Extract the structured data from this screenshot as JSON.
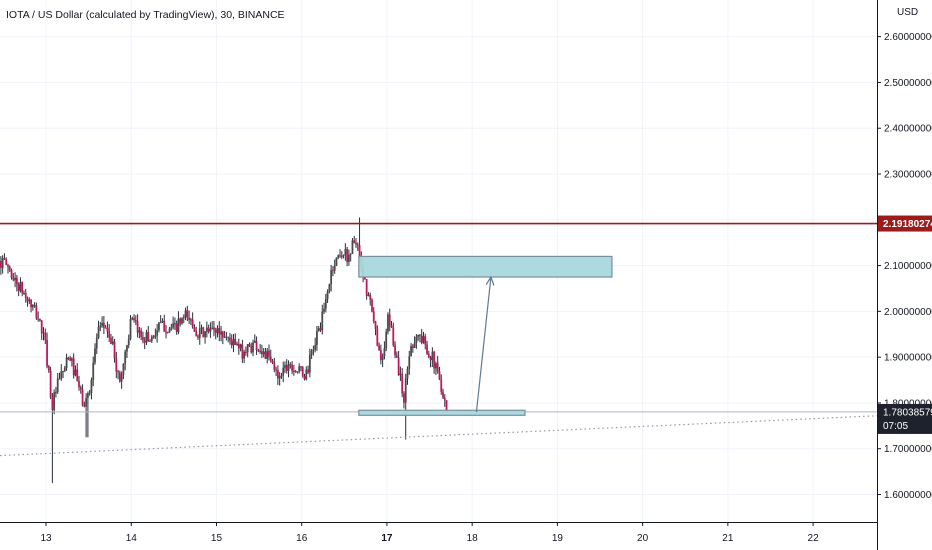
{
  "header": {
    "title": "IOTA / US Dollar (calculated by TradingView), 30, BINANCE"
  },
  "price_axis": {
    "currency": "USD",
    "resistance_label": "2.19180274",
    "current_price_label": "1.78038579",
    "countdown_label": "07:05"
  },
  "colors": {
    "up": "#4a4a4a",
    "down": "#c2185b",
    "wick": "#2a2e39",
    "resistance": "#9c1c1c",
    "zone_fill": "#a8d8dc",
    "zone_stroke": "#7a8f9f",
    "arrow": "#5f7a92",
    "trendline": "#9598a1",
    "current_line": "#b2b5be",
    "badge": "#1e222d",
    "grid": "#f0f3fa"
  },
  "chart_data": {
    "type": "candlestick",
    "title": "IOTA / US Dollar (calculated by TradingView), 30, BINANCE",
    "timeframe": "30",
    "exchange": "BINANCE",
    "ylabel": "USD",
    "ylim": [
      1.54,
      2.68
    ],
    "xlim": [
      12.46,
      22.75
    ],
    "y_ticks": [
      "1.60000000",
      "1.70000000",
      "1.80000000",
      "1.90000000",
      "2.00000000",
      "2.10000000",
      "2.20000000",
      "2.30000000",
      "2.40000000",
      "2.50000000",
      "2.60000000"
    ],
    "x_ticks": [
      "13",
      "14",
      "15",
      "16",
      "17",
      "18",
      "19",
      "20",
      "21",
      "22"
    ],
    "x_tick_values": [
      13,
      14,
      15,
      16,
      17,
      18,
      19,
      20,
      21,
      22
    ],
    "current_price": 1.78038579,
    "candle_interval_days": 0.0208333,
    "price_path": [
      [
        12.46,
        2.11
      ],
      [
        12.55,
        2.1
      ],
      [
        12.62,
        2.07
      ],
      [
        12.7,
        2.05
      ],
      [
        12.8,
        2.02
      ],
      [
        12.9,
        1.99
      ],
      [
        12.98,
        1.94
      ],
      [
        13.03,
        1.87
      ],
      [
        13.07,
        1.79
      ],
      [
        13.12,
        1.83
      ],
      [
        13.2,
        1.87
      ],
      [
        13.28,
        1.9
      ],
      [
        13.36,
        1.85
      ],
      [
        13.45,
        1.79
      ],
      [
        13.52,
        1.84
      ],
      [
        13.6,
        1.95
      ],
      [
        13.7,
        1.97
      ],
      [
        13.8,
        1.91
      ],
      [
        13.86,
        1.84
      ],
      [
        13.92,
        1.9
      ],
      [
        14.0,
        1.98
      ],
      [
        14.1,
        1.95
      ],
      [
        14.22,
        1.94
      ],
      [
        14.35,
        1.97
      ],
      [
        14.5,
        1.96
      ],
      [
        14.65,
        1.99
      ],
      [
        14.8,
        1.95
      ],
      [
        15.0,
        1.96
      ],
      [
        15.15,
        1.94
      ],
      [
        15.3,
        1.91
      ],
      [
        15.45,
        1.93
      ],
      [
        15.6,
        1.9
      ],
      [
        15.72,
        1.86
      ],
      [
        15.85,
        1.89
      ],
      [
        15.95,
        1.87
      ],
      [
        16.05,
        1.86
      ],
      [
        16.15,
        1.93
      ],
      [
        16.25,
        1.99
      ],
      [
        16.35,
        2.09
      ],
      [
        16.45,
        2.13
      ],
      [
        16.55,
        2.12
      ],
      [
        16.62,
        2.16
      ],
      [
        16.67,
        2.12
      ],
      [
        16.72,
        2.07
      ],
      [
        16.8,
        2.02
      ],
      [
        16.87,
        1.95
      ],
      [
        16.95,
        1.89
      ],
      [
        17.02,
        1.99
      ],
      [
        17.08,
        1.93
      ],
      [
        17.15,
        1.86
      ],
      [
        17.2,
        1.81
      ],
      [
        17.27,
        1.92
      ],
      [
        17.35,
        1.95
      ],
      [
        17.45,
        1.93
      ],
      [
        17.55,
        1.89
      ],
      [
        17.65,
        1.83
      ],
      [
        17.72,
        1.78
      ]
    ],
    "levels": [
      {
        "name": "resistance",
        "price": 2.19180274
      },
      {
        "name": "current",
        "price": 1.78038579
      }
    ],
    "zones": [
      {
        "name": "target-zone",
        "x": [
          16.67,
          19.64
        ],
        "y": [
          2.075,
          2.12
        ]
      },
      {
        "name": "support-zone",
        "x": [
          16.67,
          18.62
        ],
        "y": [
          1.773,
          1.784
        ]
      }
    ],
    "trendline": {
      "x": [
        12.46,
        22.75
      ],
      "y": [
        1.685,
        1.772
      ]
    },
    "arrow": {
      "from": [
        18.05,
        1.78
      ],
      "to": [
        18.22,
        2.075
      ]
    },
    "notable_extremes": [
      {
        "x": 13.07,
        "low": 1.625
      },
      {
        "x": 13.48,
        "low": 1.725
      },
      {
        "x": 16.68,
        "high": 2.205
      },
      {
        "x": 17.22,
        "low": 1.72
      }
    ]
  }
}
